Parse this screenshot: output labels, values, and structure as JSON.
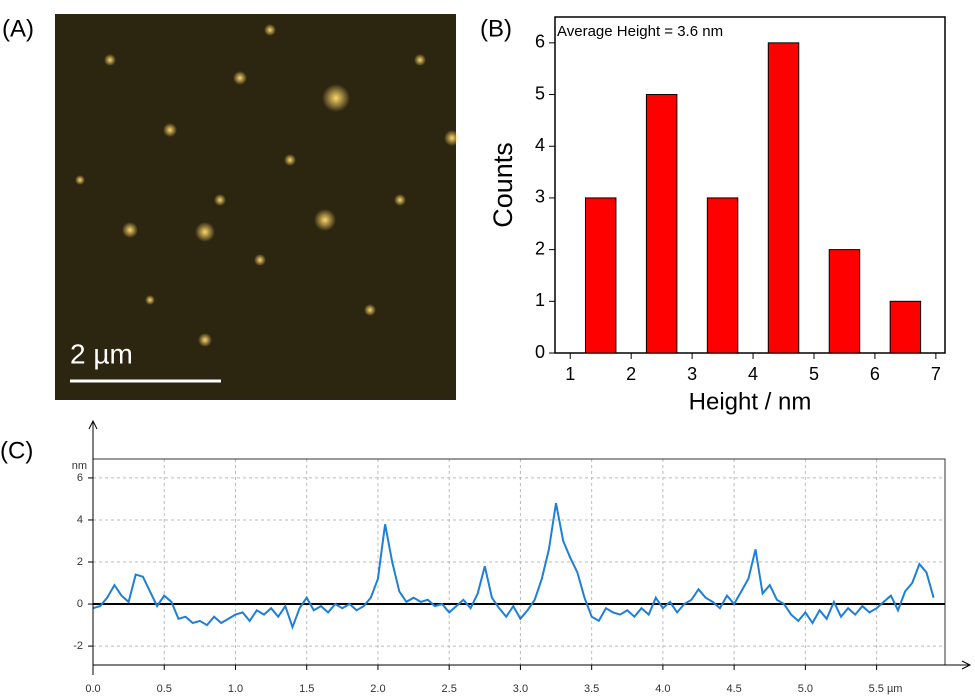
{
  "panel_image": {
    "label": "(A)",
    "scale_bar_label": "2 µm"
  },
  "chart_data": [
    {
      "type": "histogram",
      "panel_label": "(B)",
      "annotation": "Average Height = 3.6 nm",
      "xlabel": "Height / nm",
      "ylabel": "Counts",
      "bins": [
        1,
        2,
        3,
        4,
        5,
        6,
        7
      ],
      "counts": [
        3,
        5,
        3,
        6,
        2,
        1
      ],
      "color": "#ff0000",
      "xlim": [
        0.75,
        7.15
      ],
      "ylim": [
        0,
        6.5
      ],
      "xticks": [
        1,
        2,
        3,
        4,
        5,
        6,
        7
      ],
      "yticks": [
        0,
        1,
        2,
        3,
        4,
        5,
        6
      ]
    },
    {
      "type": "line",
      "panel_label": "(C)",
      "ylabel": "nm",
      "color": "#1e7fd6",
      "grid": true,
      "x": [
        0,
        0.05,
        0.1,
        0.15,
        0.2,
        0.25,
        0.3,
        0.35,
        0.4,
        0.45,
        0.5,
        0.55,
        0.6,
        0.65,
        0.7,
        0.75,
        0.8,
        0.85,
        0.9,
        0.95,
        1,
        1.05,
        1.1,
        1.15,
        1.2,
        1.25,
        1.3,
        1.35,
        1.4,
        1.45,
        1.5,
        1.55,
        1.6,
        1.65,
        1.7,
        1.75,
        1.8,
        1.85,
        1.9,
        1.95,
        2,
        2.05,
        2.1,
        2.15,
        2.2,
        2.25,
        2.3,
        2.35,
        2.4,
        2.45,
        2.5,
        2.55,
        2.6,
        2.65,
        2.7,
        2.75,
        2.8,
        2.85,
        2.9,
        2.95,
        3,
        3.05,
        3.1,
        3.15,
        3.2,
        3.25,
        3.3,
        3.35,
        3.4,
        3.45,
        3.5,
        3.55,
        3.6,
        3.65,
        3.7,
        3.75,
        3.8,
        3.85,
        3.9,
        3.95,
        4,
        4.05,
        4.1,
        4.15,
        4.2,
        4.25,
        4.3,
        4.35,
        4.4,
        4.45,
        4.5,
        4.55,
        4.6,
        4.65,
        4.7,
        4.75,
        4.8,
        4.85,
        4.9,
        4.95,
        5,
        5.05,
        5.1,
        5.15,
        5.2,
        5.25,
        5.3,
        5.35,
        5.4,
        5.45,
        5.5,
        5.55,
        5.6,
        5.65,
        5.7,
        5.75,
        5.8,
        5.85,
        5.9
      ],
      "values": [
        -0.2,
        -0.1,
        0.3,
        0.9,
        0.4,
        0.1,
        1.4,
        1.3,
        0.6,
        -0.1,
        0.4,
        0.1,
        -0.7,
        -0.6,
        -0.9,
        -0.8,
        -1.0,
        -0.6,
        -0.9,
        -0.7,
        -0.5,
        -0.4,
        -0.8,
        -0.3,
        -0.5,
        -0.2,
        -0.6,
        -0.1,
        -1.1,
        -0.2,
        0.3,
        -0.3,
        -0.1,
        -0.4,
        0.0,
        -0.2,
        0.0,
        -0.3,
        -0.1,
        0.3,
        1.2,
        3.8,
        2.0,
        0.6,
        0.1,
        0.3,
        0.1,
        0.2,
        -0.1,
        0.0,
        -0.4,
        -0.1,
        0.2,
        -0.2,
        0.5,
        1.8,
        0.3,
        -0.2,
        -0.6,
        -0.1,
        -0.7,
        -0.3,
        0.2,
        1.2,
        2.6,
        4.8,
        3.0,
        2.2,
        1.5,
        0.3,
        -0.6,
        -0.8,
        -0.2,
        -0.4,
        -0.5,
        -0.3,
        -0.6,
        -0.2,
        -0.5,
        0.3,
        -0.2,
        0.1,
        -0.4,
        0.0,
        0.2,
        0.7,
        0.3,
        0.1,
        -0.2,
        0.4,
        0.0,
        0.6,
        1.2,
        2.6,
        0.5,
        0.9,
        0.2,
        0.0,
        -0.5,
        -0.8,
        -0.4,
        -0.9,
        -0.3,
        -0.7,
        0.1,
        -0.6,
        -0.2,
        -0.5,
        -0.1,
        -0.4,
        -0.2,
        0.1,
        0.4,
        -0.3,
        0.6,
        1.0,
        1.9,
        1.5,
        0.3
      ],
      "xlim": [
        0,
        5.98
      ],
      "ylim": [
        -2.9,
        6.9
      ],
      "xticks": [
        {
          "value": 0,
          "label": "0.0"
        },
        0.5,
        {
          "value": 1,
          "label": "1.0"
        },
        1.5,
        {
          "value": 2,
          "label": "2.0"
        },
        2.5,
        {
          "value": 3,
          "label": "3.0"
        },
        3.5,
        {
          "value": 4,
          "label": "4.0"
        },
        4.5,
        {
          "value": 5,
          "label": "5.0"
        },
        {
          "value": 5.5,
          "label": "5.5 µm"
        }
      ],
      "yticks": [
        -2,
        0,
        2,
        4,
        6
      ]
    }
  ]
}
